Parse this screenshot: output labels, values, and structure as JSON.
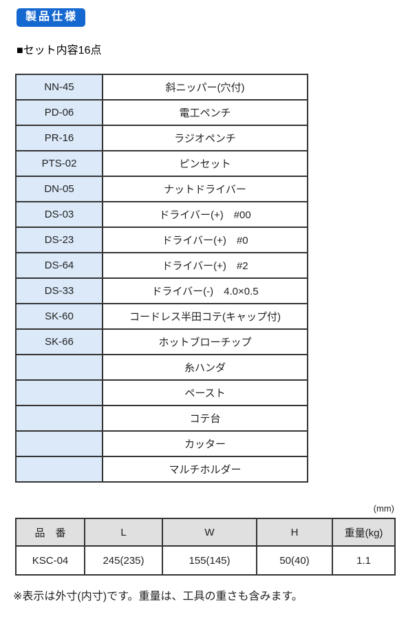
{
  "page": {
    "badge": "製品仕様",
    "section_title": "■セット内容16点",
    "unit_label": "(mm)",
    "note": "※表示は外寸(内寸)です。重量は、工具の重さも含みます。"
  },
  "set_table": {
    "rows": [
      {
        "code": "NN-45",
        "name": "斜ニッパー(穴付)"
      },
      {
        "code": "PD-06",
        "name": "電工ペンチ"
      },
      {
        "code": "PR-16",
        "name": "ラジオペンチ"
      },
      {
        "code": "PTS-02",
        "name": "ピンセット"
      },
      {
        "code": "DN-05",
        "name": "ナットドライバー"
      },
      {
        "code": "DS-03",
        "name": "ドライバー(+)　#00"
      },
      {
        "code": "DS-23",
        "name": "ドライバー(+)　#0"
      },
      {
        "code": "DS-64",
        "name": "ドライバー(+)　#2"
      },
      {
        "code": "DS-33",
        "name": "ドライバー(-)　4.0×0.5"
      },
      {
        "code": "SK-60",
        "name": "コードレス半田コテ(キャップ付)"
      },
      {
        "code": "SK-66",
        "name": "ホットブローチップ"
      },
      {
        "code": "",
        "name": "糸ハンダ"
      },
      {
        "code": "",
        "name": "ペースト"
      },
      {
        "code": "",
        "name": "コテ台"
      },
      {
        "code": "",
        "name": "カッター"
      },
      {
        "code": "",
        "name": "マルチホルダー"
      }
    ]
  },
  "dim_table": {
    "headers": [
      "品　番",
      "L",
      "W",
      "H",
      "重量(kg)"
    ],
    "rows": [
      [
        "KSC-04",
        "245(235)",
        "155(145)",
        "50(40)",
        "1.1"
      ]
    ]
  },
  "colors": {
    "badge_bg": "#1568d0",
    "code_cell_bg": "#dbe9f9",
    "dim_header_bg": "#e0e0e0",
    "table_border": "#333333"
  }
}
